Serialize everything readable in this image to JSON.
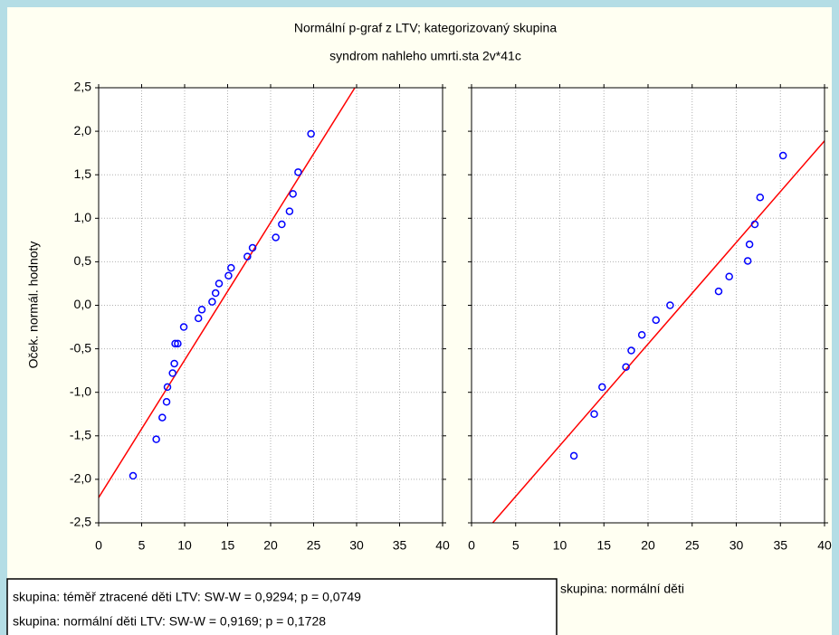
{
  "title": "Normální p-graf z LTV; kategorizovaný skupina",
  "subtitle": "syndrom nahleho umrti.sta 2v*41c",
  "ylabel": "Oček. normál. hodnoty",
  "stats": [
    "skupina: téměř ztracené děti  LTV:  SW-W = 0,9294; p = 0,0749",
    "skupina: normální děti  LTV:  SW-W = 0,9169; p = 0,1728"
  ],
  "chart_data": [
    {
      "type": "scatter",
      "color": "#0000ff",
      "x": [
        4.0,
        6.7,
        7.4,
        7.9,
        8.0,
        8.6,
        8.8,
        8.9,
        9.2,
        9.9,
        11.6,
        12.0,
        13.2,
        13.6,
        14.0,
        15.1,
        15.4,
        17.3,
        17.9,
        20.6,
        21.3,
        22.2,
        22.6,
        23.2,
        24.7
      ],
      "values": [
        -1.96,
        -1.54,
        -1.29,
        -1.11,
        -0.94,
        -0.78,
        -0.67,
        -0.44,
        -0.44,
        -0.25,
        -0.15,
        -0.05,
        0.04,
        0.14,
        0.25,
        0.34,
        0.43,
        0.56,
        0.66,
        0.78,
        0.93,
        1.08,
        1.28,
        1.53,
        1.97
      ],
      "fit": {
        "color": "#ff0000",
        "x": [
          0,
          29.8
        ],
        "values": [
          -2.21,
          2.5
        ]
      },
      "xlim": [
        0,
        40
      ],
      "ylim": [
        -2.5,
        2.5
      ],
      "xticks": [
        0,
        5,
        10,
        15,
        20,
        25,
        30,
        35,
        40
      ],
      "yticks": [
        {
          "value": -2.5,
          "label": "-2,5"
        },
        {
          "value": -2,
          "label": "-2,0"
        },
        {
          "value": -1.5,
          "label": "-1,5"
        },
        {
          "value": -1,
          "label": "-1,0"
        },
        {
          "value": -0.5,
          "label": "-0,5"
        },
        {
          "value": 0,
          "label": "0,0"
        },
        {
          "value": 0.5,
          "label": "0,5"
        },
        {
          "value": 1,
          "label": "1,0"
        },
        {
          "value": 1.5,
          "label": "1,5"
        },
        {
          "value": 2,
          "label": "2,0"
        },
        {
          "value": 2.5,
          "label": "2,5"
        }
      ],
      "grid": true
    },
    {
      "type": "scatter",
      "color": "#0000ff",
      "xlabel": "skupina: normální děti",
      "x": [
        11.6,
        13.9,
        14.8,
        17.5,
        18.1,
        19.3,
        20.9,
        22.5,
        28.0,
        29.2,
        31.3,
        31.5,
        32.1,
        32.7,
        35.3
      ],
      "values": [
        -1.73,
        -1.25,
        -0.94,
        -0.71,
        -0.52,
        -0.34,
        -0.17,
        0.0,
        0.16,
        0.33,
        0.51,
        0.7,
        0.93,
        1.24,
        1.72
      ],
      "fit": {
        "color": "#ff0000",
        "x": [
          2.4,
          40
        ],
        "values": [
          -2.5,
          1.89
        ]
      },
      "xlim": [
        0,
        40
      ],
      "ylim": [
        -2.5,
        2.5
      ],
      "xticks": [
        0,
        5,
        10,
        15,
        20,
        25,
        30,
        35,
        40
      ],
      "yticks": [
        -2.5,
        -2,
        -1.5,
        -1,
        -0.5,
        0,
        0.5,
        1,
        1.5,
        2,
        2.5
      ],
      "grid": true
    }
  ]
}
